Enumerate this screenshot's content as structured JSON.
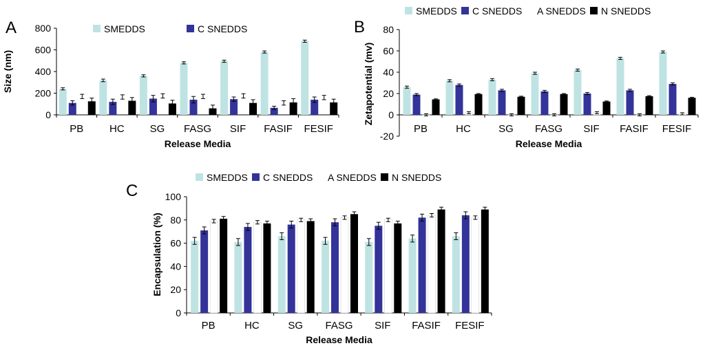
{
  "colors": {
    "SMEDDS": "#bfe3e3",
    "C SNEDDS": "#33339a",
    "A SNEDDS": "#ffffff",
    "N SNEDDS": "#000000"
  },
  "chart_data": [
    {
      "panel": "A",
      "type": "bar",
      "xlabel": "Release Media",
      "ylabel": "Size (nm)",
      "ylim": [
        0,
        800
      ],
      "yticks": [
        0,
        200,
        400,
        600,
        800
      ],
      "legend_placement": "top",
      "categories": [
        "PB",
        "HC",
        "SG",
        "FASG",
        "SIF",
        "FASIF",
        "FESIF"
      ],
      "series": [
        {
          "name": "SMEDDS",
          "values": [
            240,
            318,
            360,
            480,
            495,
            580,
            680
          ],
          "errors": [
            10,
            12,
            10,
            10,
            10,
            10,
            10
          ]
        },
        {
          "name": "C SNEDDS",
          "values": [
            110,
            120,
            150,
            140,
            145,
            65,
            140
          ],
          "errors": [
            20,
            25,
            30,
            30,
            20,
            15,
            25
          ]
        },
        {
          "name": "",
          "values": [
            null,
            null,
            null,
            null,
            null,
            null,
            null
          ],
          "errors": [
            20,
            20,
            20,
            20,
            20,
            20,
            20
          ],
          "errcenter": [
            170,
            165,
            175,
            170,
            175,
            110,
            160
          ]
        },
        {
          "name": "",
          "values": [
            125,
            130,
            105,
            60,
            110,
            115,
            115
          ],
          "errors": [
            30,
            30,
            30,
            30,
            30,
            35,
            30
          ]
        }
      ]
    },
    {
      "panel": "B",
      "type": "bar",
      "xlabel": "Release Media",
      "ylabel": "Zetapotential (mv)",
      "ylim": [
        -20,
        80
      ],
      "yticks": [
        -20,
        0,
        20,
        40,
        60,
        80
      ],
      "legend_placement": "top",
      "categories": [
        "PB",
        "HC",
        "SG",
        "FASG",
        "SIF",
        "FASIF",
        "FESIF"
      ],
      "series": [
        {
          "name": "SMEDDS",
          "values": [
            26,
            32,
            33,
            39,
            42,
            53,
            59
          ],
          "errors": [
            1,
            1,
            1,
            1,
            1,
            1,
            1
          ]
        },
        {
          "name": "C SNEDDS",
          "values": [
            19,
            28,
            23,
            22,
            20,
            23,
            29
          ],
          "errors": [
            1,
            1,
            1,
            1,
            1,
            1,
            1
          ]
        },
        {
          "name": "A SNEDDS",
          "values": [
            0,
            2,
            0,
            0,
            2,
            0,
            1
          ],
          "errors": [
            1,
            1,
            1,
            1,
            1,
            1,
            1
          ]
        },
        {
          "name": "N SNEDDS",
          "values": [
            14.5,
            19.5,
            17,
            19.5,
            12.5,
            17.5,
            16
          ],
          "errors": [
            0.5,
            0.5,
            0.5,
            0.5,
            0.5,
            0.5,
            0.5
          ]
        }
      ]
    },
    {
      "panel": "C",
      "type": "bar",
      "xlabel": "Release Media",
      "ylabel": "Encapsulation (%)",
      "ylim": [
        0,
        100
      ],
      "yticks": [
        0,
        20,
        40,
        60,
        80,
        100
      ],
      "legend_placement": "top",
      "categories": [
        "PB",
        "HC",
        "SG",
        "FASG",
        "SIF",
        "FASIF",
        "FESIF"
      ],
      "series": [
        {
          "name": "SMEDDS",
          "values": [
            62,
            61,
            66,
            62,
            61,
            64,
            66
          ],
          "errors": [
            3,
            3,
            3,
            3,
            3,
            3,
            3
          ]
        },
        {
          "name": "C SNEDDS",
          "values": [
            71,
            74,
            76,
            78,
            75,
            82,
            84
          ],
          "errors": [
            3,
            3,
            3,
            3,
            3,
            3,
            3
          ]
        },
        {
          "name": "A SNEDDS",
          "values": [
            79,
            78,
            80,
            82,
            80,
            84,
            82
          ],
          "errors": [
            1.5,
            1.5,
            1.5,
            1.5,
            1.5,
            1.5,
            1.5
          ]
        },
        {
          "name": "N SNEDDS",
          "values": [
            81,
            77,
            79,
            85,
            77,
            89,
            89
          ],
          "errors": [
            2,
            2,
            2,
            2,
            2,
            2,
            2
          ]
        }
      ]
    }
  ],
  "legends": {
    "A": [
      "SMEDDS",
      "C SNEDDS"
    ],
    "B": [
      "SMEDDS",
      "C SNEDDS",
      "A SNEDDS",
      "N SNEDDS"
    ],
    "C": [
      "SMEDDS",
      "C SNEDDS",
      "A SNEDDS",
      "N SNEDDS"
    ]
  }
}
